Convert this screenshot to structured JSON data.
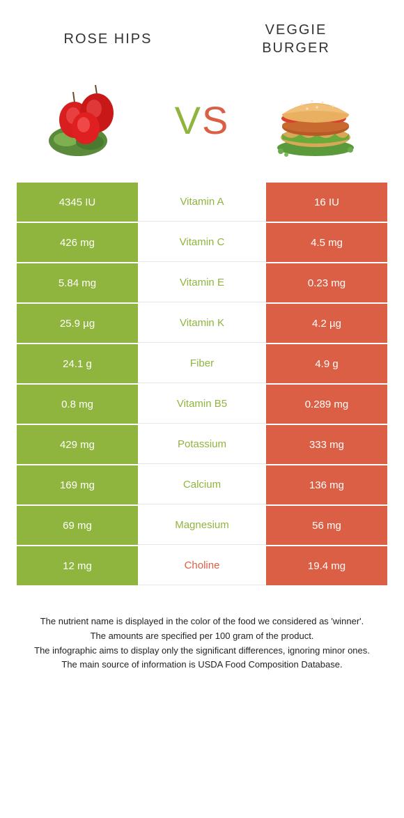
{
  "header": {
    "left_title": "ROSE HIPS",
    "right_title_line1": "VEGGIE",
    "right_title_line2": "BURGER",
    "vs_v": "V",
    "vs_s": "S"
  },
  "colors": {
    "green": "#8fb53e",
    "orange": "#db5f44",
    "green_text": "#8fb53e",
    "orange_text": "#db5f44"
  },
  "table": {
    "rows": [
      {
        "left": "4345 IU",
        "mid": "Vitamin A",
        "right": "16 IU",
        "winner": "left"
      },
      {
        "left": "426 mg",
        "mid": "Vitamin C",
        "right": "4.5 mg",
        "winner": "left"
      },
      {
        "left": "5.84 mg",
        "mid": "Vitamin E",
        "right": "0.23 mg",
        "winner": "left"
      },
      {
        "left": "25.9 µg",
        "mid": "Vitamin K",
        "right": "4.2 µg",
        "winner": "left"
      },
      {
        "left": "24.1 g",
        "mid": "Fiber",
        "right": "4.9 g",
        "winner": "left"
      },
      {
        "left": "0.8 mg",
        "mid": "Vitamin B5",
        "right": "0.289 mg",
        "winner": "left"
      },
      {
        "left": "429 mg",
        "mid": "Potassium",
        "right": "333 mg",
        "winner": "left"
      },
      {
        "left": "169 mg",
        "mid": "Calcium",
        "right": "136 mg",
        "winner": "left"
      },
      {
        "left": "69 mg",
        "mid": "Magnesium",
        "right": "56 mg",
        "winner": "left"
      },
      {
        "left": "12 mg",
        "mid": "Choline",
        "right": "19.4 mg",
        "winner": "right"
      }
    ]
  },
  "footer": {
    "line1": "The nutrient name is displayed in the color of the food we considered as 'winner'.",
    "line2": "The amounts are specified per 100 gram of the product.",
    "line3": "The infographic aims to display only the significant differences, ignoring minor ones.",
    "line4": "The main source of information is USDA Food Composition Database."
  }
}
